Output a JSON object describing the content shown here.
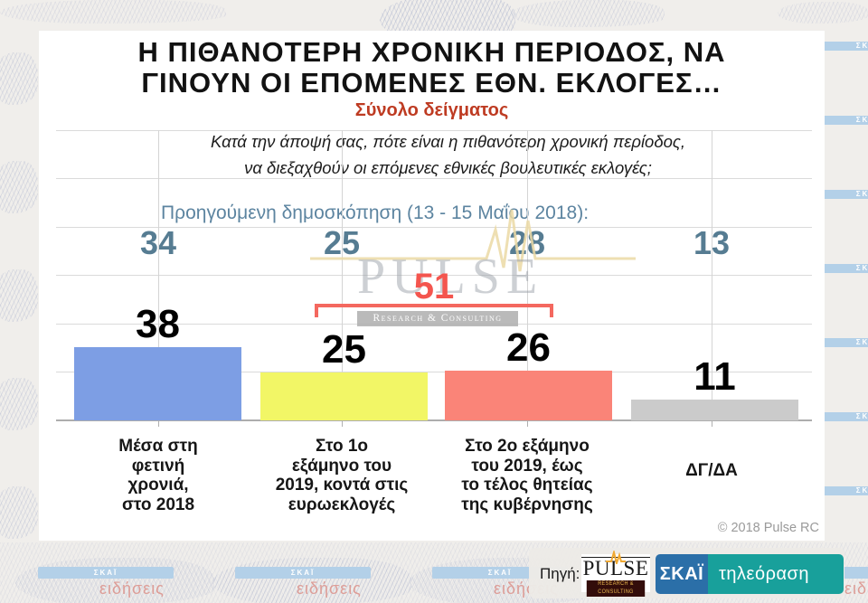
{
  "header": {
    "title_line1": "Η ΠΙΘΑΝΟΤΕΡΗ ΧΡΟΝΙΚΗ ΠΕΡΙΟΔΟΣ, ΝΑ",
    "title_line2": "ΓΙΝΟΥΝ ΟΙ ΕΠΟΜΕΝΕΣ ΕΘΝ. ΕΚΛΟΓΕΣ…",
    "subtitle": "Σύνολο δείγματος"
  },
  "question": {
    "line1": "Κατά την άποψή σας, πότε είναι η πιθανότερη χρονική περίοδος,",
    "line2": "να διεξαχθούν οι επόμενες εθνικές βουλευτικές εκλογές;"
  },
  "previous": {
    "label": "Προηγούμενη δημοσκόπηση (13 - 15 Μαΐου 2018):"
  },
  "chart_data": {
    "type": "bar",
    "title": "Η ΠΙΘΑΝΟΤΕΡΗ ΧΡΟΝΙΚΗ ΠΕΡΙΟΔΟΣ, ΝΑ ΓΙΝΟΥΝ ΟΙ ΕΠΟΜΕΝΕΣ ΕΘΝ. ΕΚΛΟΓΕΣ…",
    "subtitle": "Σύνολο δείγματος",
    "categories": [
      "Μέσα στη φετινή χρονιά, στο 2018",
      "Στο 1ο εξάμηνο του 2019, κοντά στις ευρωεκλογές",
      "Στο 2ο εξάμηνο του 2019, έως το τέλος θητείας της κυβέρνησης",
      "ΔΓ/ΔΑ"
    ],
    "series": [
      {
        "name": "Προηγούμενη δημοσκόπηση (13 - 15 Μαΐου 2018)",
        "values": [
          34,
          25,
          28,
          13
        ]
      },
      {
        "name": "",
        "values": [
          38,
          25,
          26,
          11
        ]
      }
    ],
    "annotations": [
      {
        "label": "51",
        "spans_categories": [
          1,
          2
        ]
      }
    ],
    "bar_colors": [
      "#7d9ee4",
      "#f2f666",
      "#fa8478",
      "#cbcbcb"
    ],
    "ylim": [
      0,
      150
    ],
    "gridline_step": 25,
    "grid": true,
    "legend": "none"
  },
  "ui": {
    "category_lines": [
      "Μέσα στη\nφετινή\nχρονιά,\nστο 2018",
      "Στο 1ο\nεξάμηνο του\n2019, κοντά στις\nευρωεκλογές",
      "Στο 2ο εξάμηνο\nτου 2019, έως\nτο τέλος θητείας\nτης κυβέρνησης",
      "ΔΓ/ΔΑ"
    ]
  },
  "watermark": {
    "brand": "PULSE",
    "tagline": "Research & Consulting"
  },
  "footer": {
    "copyright": "© 2018 Pulse RC"
  },
  "source_bar": {
    "label": "Πηγή:",
    "pulse_brand": "PULSE",
    "pulse_tagline": "RESEARCH & CONSULTING",
    "skai": "ΣΚΑΪ",
    "skai_product": "τηλεόραση"
  },
  "background": {
    "channel": "ΣΚΑΪ",
    "news": "ειδήσεις"
  }
}
